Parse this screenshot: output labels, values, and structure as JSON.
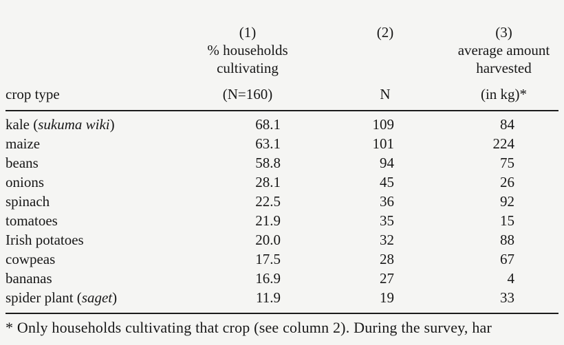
{
  "page": {
    "background_color": "#f5f5f3",
    "text_color": "#171717",
    "rule_color": "#1b1b1b"
  },
  "table": {
    "header": {
      "crop": {
        "line1": "",
        "line2": "",
        "line3": "",
        "line4": "crop type"
      },
      "pct": {
        "line1": "(1)",
        "line2": "% households",
        "line3": "cultivating",
        "line4": "(N=160)"
      },
      "n": {
        "line1": "(2)",
        "line2": "",
        "line3": "",
        "line4": "N"
      },
      "kg": {
        "line1": "(3)",
        "line2": "average amount",
        "line3": "harvested",
        "line4": "(in kg)*"
      }
    },
    "rows": [
      {
        "crop_pre": "kale (",
        "crop_italic": "sukuma wiki",
        "crop_post": ")",
        "pct": "68.1",
        "n": "109",
        "kg": "84"
      },
      {
        "crop_pre": "maize",
        "crop_italic": "",
        "crop_post": "",
        "pct": "63.1",
        "n": "101",
        "kg": "224"
      },
      {
        "crop_pre": "beans",
        "crop_italic": "",
        "crop_post": "",
        "pct": "58.8",
        "n": "94",
        "kg": "75"
      },
      {
        "crop_pre": "onions",
        "crop_italic": "",
        "crop_post": "",
        "pct": "28.1",
        "n": "45",
        "kg": "26"
      },
      {
        "crop_pre": "spinach",
        "crop_italic": "",
        "crop_post": "",
        "pct": "22.5",
        "n": "36",
        "kg": "92"
      },
      {
        "crop_pre": "tomatoes",
        "crop_italic": "",
        "crop_post": "",
        "pct": "21.9",
        "n": "35",
        "kg": "15"
      },
      {
        "crop_pre": "Irish potatoes",
        "crop_italic": "",
        "crop_post": "",
        "pct": "20.0",
        "n": "32",
        "kg": "88"
      },
      {
        "crop_pre": "cowpeas",
        "crop_italic": "",
        "crop_post": "",
        "pct": "17.5",
        "n": "28",
        "kg": "67"
      },
      {
        "crop_pre": "bananas",
        "crop_italic": "",
        "crop_post": "",
        "pct": "16.9",
        "n": "27",
        "kg": "4"
      },
      {
        "crop_pre": "spider plant (",
        "crop_italic": "saget",
        "crop_post": ")",
        "pct": "11.9",
        "n": "19",
        "kg": "33"
      }
    ],
    "footnote": "* Only households cultivating that crop (see column 2). During the survey, har"
  }
}
